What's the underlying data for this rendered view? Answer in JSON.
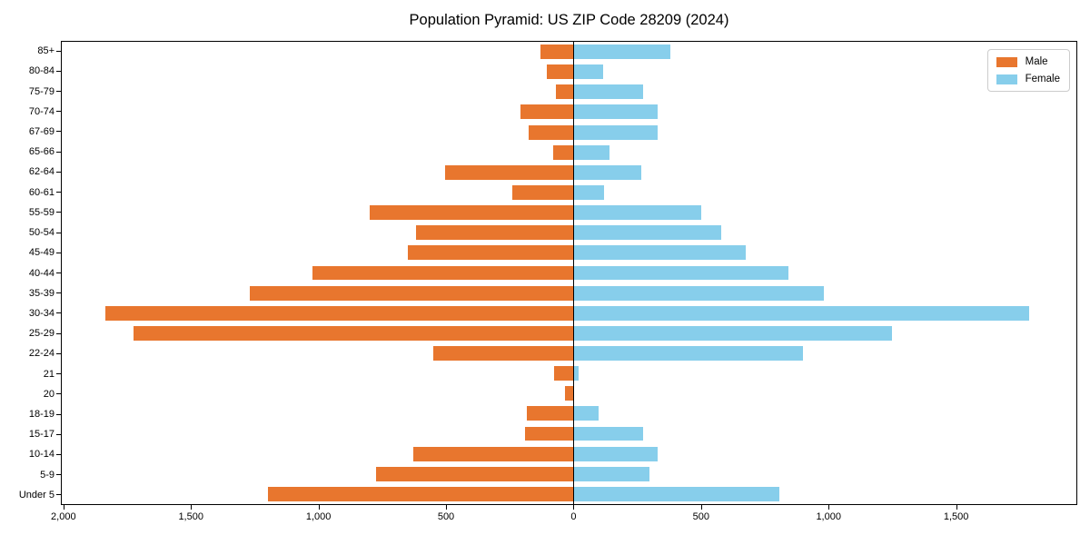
{
  "chart_data": {
    "type": "bar",
    "subtype": "population-pyramid-horizontal",
    "title": "Population Pyramid: US ZIP Code 28209 (2024)",
    "categories_top_to_bottom": [
      "85+",
      "80-84",
      "75-79",
      "70-74",
      "67-69",
      "65-66",
      "62-64",
      "60-61",
      "55-59",
      "50-54",
      "45-49",
      "40-44",
      "35-39",
      "30-34",
      "25-29",
      "22-24",
      "21",
      "20",
      "18-19",
      "15-17",
      "10-14",
      "5-9",
      "Under 5"
    ],
    "series": [
      {
        "name": "Male",
        "side": "left",
        "color": "#e8762e",
        "values": [
          130,
          105,
          70,
          210,
          175,
          80,
          505,
          240,
          800,
          620,
          650,
          1025,
          1270,
          1840,
          1730,
          550,
          75,
          35,
          185,
          190,
          630,
          775,
          1200
        ]
      },
      {
        "name": "Female",
        "side": "right",
        "color": "#87ceeb",
        "values": [
          380,
          115,
          275,
          330,
          330,
          140,
          265,
          120,
          500,
          580,
          675,
          845,
          985,
          1790,
          1250,
          900,
          20,
          0,
          100,
          275,
          330,
          300,
          810
        ]
      }
    ],
    "x_ticks": [
      {
        "value": -2000,
        "label": "2,000"
      },
      {
        "value": -1500,
        "label": "1,500"
      },
      {
        "value": -1000,
        "label": "1,000"
      },
      {
        "value": -500,
        "label": "500"
      },
      {
        "value": 0,
        "label": "0"
      },
      {
        "value": 500,
        "label": "500"
      },
      {
        "value": 1000,
        "label": "1,000"
      },
      {
        "value": 1500,
        "label": "1,500"
      }
    ],
    "xlim": [
      -2010,
      1975
    ],
    "grid": false,
    "legend_position": "upper-right",
    "zero_line_color": "#000000"
  }
}
